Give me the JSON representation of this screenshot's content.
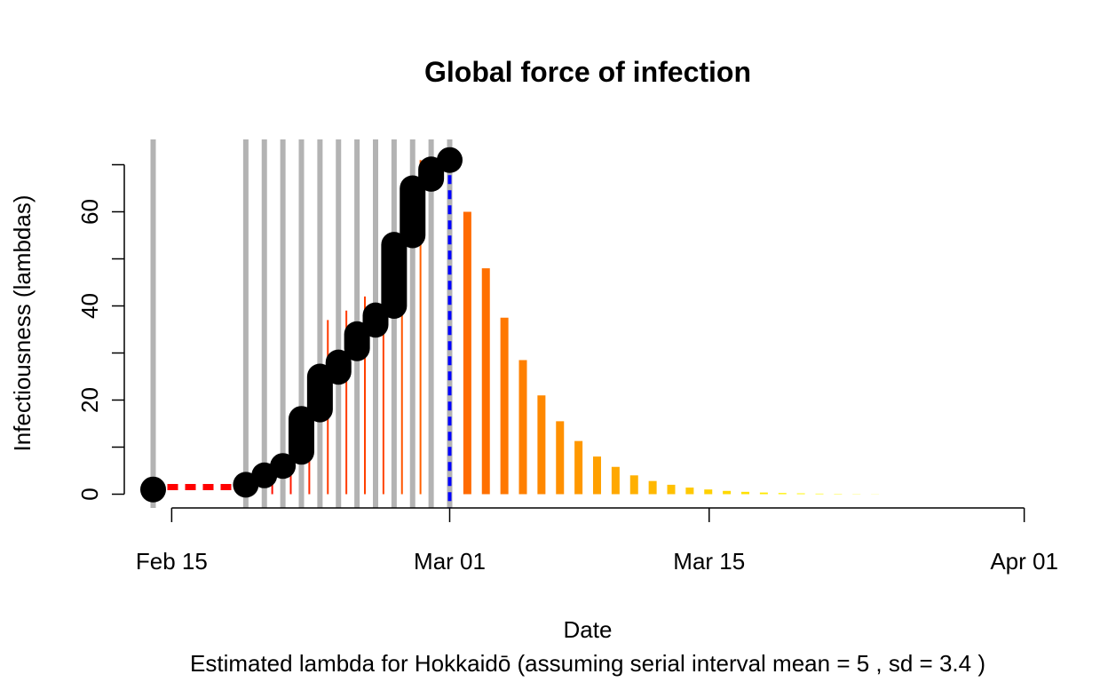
{
  "chart_data": {
    "type": "bar",
    "title": "Global force of infection",
    "xlabel": "Date",
    "ylabel": "Infectiousness (lambdas)",
    "subtitle": "Estimated lambda for Hokkaidō (assuming serial interval mean = 5 , sd = 3.4 )",
    "x_ticks": [
      {
        "date": "2020-02-15",
        "label": "Feb 15"
      },
      {
        "date": "2020-03-01",
        "label": "Mar 01"
      },
      {
        "date": "2020-03-15",
        "label": "Mar 15"
      },
      {
        "date": "2020-04-01",
        "label": "Apr 01"
      }
    ],
    "y_ticks": [
      0,
      20,
      40,
      60
    ],
    "ylim": [
      0,
      70
    ],
    "xlim": [
      "2020-02-14",
      "2020-04-01"
    ],
    "current_date": "2020-03-01",
    "case_dates": [
      "2020-02-14",
      "2020-02-19",
      "2020-02-20",
      "2020-02-21",
      "2020-02-22",
      "2020-02-23",
      "2020-02-24",
      "2020-02-25",
      "2020-02-26",
      "2020-02-27",
      "2020-02-28",
      "2020-02-29",
      "2020-03-01"
    ],
    "observed_lambda": {
      "dates": [
        "2020-02-15",
        "2020-02-16",
        "2020-02-17",
        "2020-02-18",
        "2020-02-19",
        "2020-02-20",
        "2020-02-21",
        "2020-02-22",
        "2020-02-23",
        "2020-02-24",
        "2020-02-25",
        "2020-02-26",
        "2020-02-27",
        "2020-02-28",
        "2020-02-29"
      ],
      "values": [
        1.5,
        1.5,
        1.2,
        1.0,
        2.0,
        4.0,
        6.0,
        10.0,
        21.0,
        37.0,
        39.0,
        42.0,
        48.0,
        66.0,
        71.0
      ],
      "colors": [
        "#ff0000",
        "#ff0000",
        "#ff0000",
        "#ff0000",
        "#ff0500",
        "#ff0a00",
        "#ff1000",
        "#ff1a00",
        "#ff2a00",
        "#ff3a00",
        "#ff3c00",
        "#ff4000",
        "#ff4500",
        "#ff5500",
        "#ff6000"
      ]
    },
    "projected_lambda": {
      "dates": [
        "2020-03-02",
        "2020-03-03",
        "2020-03-04",
        "2020-03-05",
        "2020-03-06",
        "2020-03-07",
        "2020-03-08",
        "2020-03-09",
        "2020-03-10",
        "2020-03-11",
        "2020-03-12",
        "2020-03-13",
        "2020-03-14",
        "2020-03-15",
        "2020-03-16",
        "2020-03-17",
        "2020-03-18",
        "2020-03-19",
        "2020-03-20",
        "2020-03-21",
        "2020-03-22",
        "2020-03-23",
        "2020-03-24"
      ],
      "values": [
        60,
        48,
        37.5,
        28.5,
        21,
        15.5,
        11.3,
        8,
        5.8,
        4,
        2.8,
        2,
        1.4,
        1.0,
        0.7,
        0.5,
        0.35,
        0.25,
        0.18,
        0.12,
        0.08,
        0.05,
        0.03
      ],
      "colors": [
        "#ff6a00",
        "#ff7000",
        "#ff7800",
        "#ff8000",
        "#ff8800",
        "#ff9000",
        "#ff9800",
        "#ffa000",
        "#ffa800",
        "#ffb000",
        "#ffb800",
        "#ffc000",
        "#ffc800",
        "#ffd000",
        "#ffd800",
        "#ffe000",
        "#ffe800",
        "#fff000",
        "#fff500",
        "#fff800",
        "#fffa00",
        "#fffc00",
        "#fffe00"
      ]
    },
    "global_lambda_points": [
      {
        "date": "2020-02-14",
        "values": [
          1
        ]
      },
      {
        "date": "2020-02-19",
        "values": [
          2
        ]
      },
      {
        "date": "2020-02-20",
        "values": [
          4
        ]
      },
      {
        "date": "2020-02-21",
        "values": [
          6
        ]
      },
      {
        "date": "2020-02-22",
        "values": [
          9,
          16
        ]
      },
      {
        "date": "2020-02-23",
        "values": [
          18,
          25
        ]
      },
      {
        "date": "2020-02-24",
        "values": [
          26,
          28
        ]
      },
      {
        "date": "2020-02-25",
        "values": [
          31,
          34
        ]
      },
      {
        "date": "2020-02-26",
        "values": [
          36,
          38
        ]
      },
      {
        "date": "2020-02-27",
        "values": [
          40,
          53
        ]
      },
      {
        "date": "2020-02-28",
        "values": [
          55,
          65
        ]
      },
      {
        "date": "2020-02-29",
        "values": [
          67,
          69
        ]
      },
      {
        "date": "2020-03-01",
        "values": [
          71
        ]
      }
    ],
    "colors": {
      "case_lines": "#b3b3b3",
      "points": "#000000",
      "current_date_line": "#0000ff",
      "early_dashed": "#ff0000"
    }
  }
}
